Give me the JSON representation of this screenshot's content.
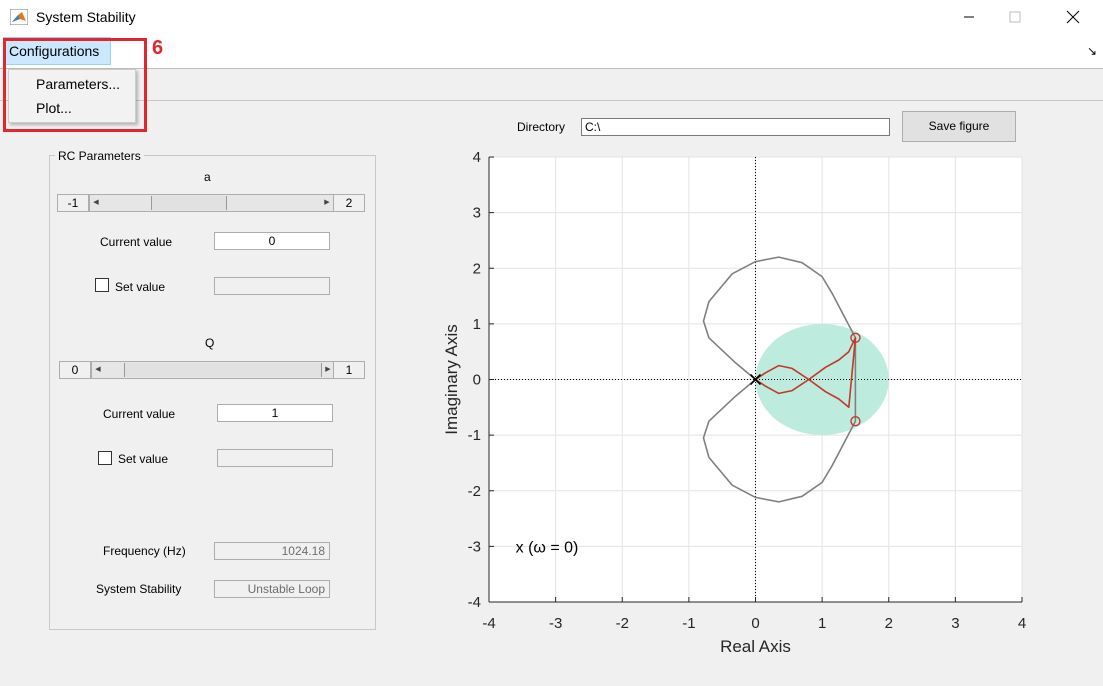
{
  "window": {
    "title": "System Stability",
    "minimize_icon": "minimize-icon",
    "maximize_icon": "maximize-icon",
    "close_icon": "close-icon"
  },
  "menubar": {
    "configurations_label": "Configurations",
    "dropdown_items": [
      "Parameters...",
      "Plot..."
    ],
    "callout_number": "6"
  },
  "panel": {
    "title": "RC Parameters",
    "a": {
      "label": "a",
      "min": "-1",
      "max": "2",
      "slider_value": 0,
      "current_value_label": "Current value",
      "current_value": "0",
      "set_value_label": "Set value",
      "set_value": ""
    },
    "q": {
      "label": "Q",
      "min": "0",
      "max": "1",
      "slider_value": 1,
      "current_value_label": "Current value",
      "current_value": "1",
      "set_value_label": "Set value",
      "set_value": ""
    },
    "frequency_label": "Frequency (Hz)",
    "frequency_value": "1024.18",
    "stability_label": "System Stability",
    "stability_value": "Unstable Loop"
  },
  "directory": {
    "label": "Directory",
    "value": "C:\\",
    "save_button": "Save figure"
  },
  "colors": {
    "accent_red": "#e0262f",
    "nyquist_red": "#c0392b",
    "nyquist_gray": "#808080",
    "disc_fill": "#bdebdd"
  },
  "chart_data": {
    "type": "line",
    "xlabel": "Real Axis",
    "ylabel": "Imaginary Axis",
    "xlim": [
      -4,
      4
    ],
    "ylim": [
      -4,
      4
    ],
    "xticks": [
      -4,
      -3,
      -2,
      -1,
      0,
      1,
      2,
      3,
      4
    ],
    "yticks": [
      4,
      3,
      2,
      1,
      0,
      -1,
      -2,
      -3,
      -4
    ],
    "grid": true,
    "annotation": "x (ω = 0)",
    "disc": {
      "center": [
        1,
        0
      ],
      "radius": 1
    },
    "series": [
      {
        "color": "#808080",
        "x": [
          0,
          -0.3,
          -0.7,
          -0.78,
          -0.7,
          -0.35,
          0,
          0.35,
          0.7,
          1.0,
          1.15,
          1.5,
          1.5,
          1.15,
          1.0,
          0.7,
          0.35,
          0,
          -0.35,
          -0.7,
          -0.78,
          -0.7,
          -0.3,
          0
        ],
        "y": [
          0,
          0.3,
          0.75,
          1.05,
          1.4,
          1.9,
          2.12,
          2.2,
          2.1,
          1.85,
          1.55,
          0.75,
          -0.75,
          -1.55,
          -1.85,
          -2.1,
          -2.2,
          -2.12,
          -1.9,
          -1.4,
          -1.05,
          -0.75,
          -0.3,
          0
        ]
      },
      {
        "color": "#c0392b",
        "x": [
          0,
          0.15,
          0.35,
          0.55,
          0.8,
          1.05,
          1.25,
          1.4,
          1.5,
          1.4,
          1.25,
          1.05,
          0.8,
          0.55,
          0.35,
          0.15,
          0
        ],
        "y": [
          0,
          -0.12,
          -0.25,
          -0.2,
          0,
          0.22,
          0.35,
          0.5,
          0.75,
          -0.5,
          -0.35,
          -0.22,
          0,
          0.2,
          0.25,
          0.12,
          0
        ]
      }
    ],
    "markers": [
      {
        "shape": "x",
        "x": 0,
        "y": 0
      },
      {
        "shape": "o",
        "x": 1.5,
        "y": 0.75
      },
      {
        "shape": "o",
        "x": 1.5,
        "y": -0.75
      }
    ]
  }
}
